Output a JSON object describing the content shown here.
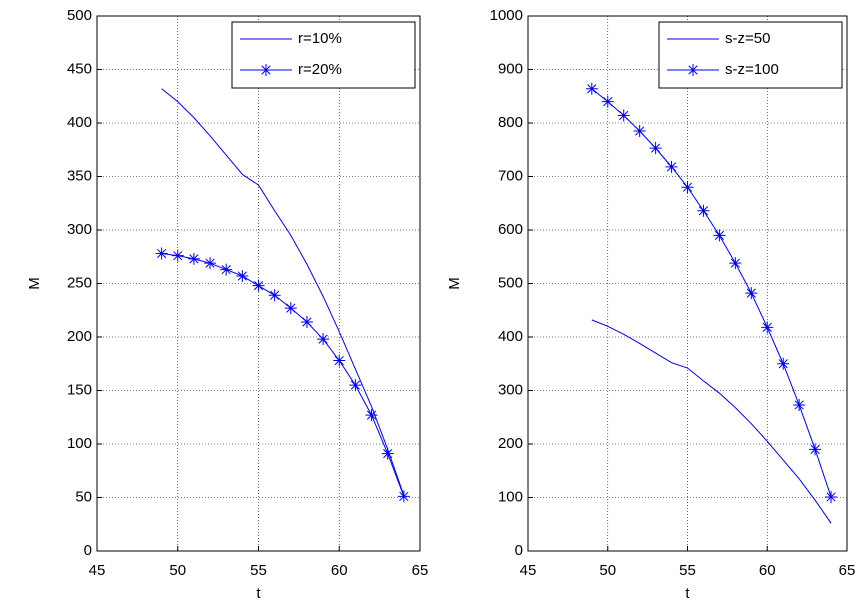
{
  "chart_data": [
    {
      "type": "line",
      "xlabel": "t",
      "ylabel": "M",
      "x": [
        49,
        50,
        51,
        52,
        53,
        54,
        55,
        56,
        57,
        58,
        59,
        60,
        61,
        62,
        63,
        64
      ],
      "series": [
        {
          "name": "r=10%",
          "color": "#0000ff",
          "marker": null,
          "values": [
            432,
            420,
            405,
            388,
            370,
            352,
            342,
            318,
            295,
            268,
            238,
            205,
            170,
            135,
            95,
            52
          ]
        },
        {
          "name": "r=20%",
          "color": "#0000ff",
          "marker": "*",
          "values": [
            278,
            276,
            273,
            269,
            263,
            257,
            248,
            239,
            227,
            214,
            198,
            178,
            155,
            127,
            91,
            51
          ]
        }
      ],
      "xlim": [
        45,
        65
      ],
      "xticks": [
        45,
        50,
        55,
        60,
        65
      ],
      "ylim": [
        0,
        500
      ],
      "yticks": [
        0,
        50,
        100,
        150,
        200,
        250,
        300,
        350,
        400,
        450,
        500
      ],
      "grid": true,
      "legend": "upper right"
    },
    {
      "type": "line",
      "xlabel": "t",
      "ylabel": "M",
      "x": [
        49,
        50,
        51,
        52,
        53,
        54,
        55,
        56,
        57,
        58,
        59,
        60,
        61,
        62,
        63,
        64
      ],
      "series": [
        {
          "name": "s-z=50",
          "color": "#0000ff",
          "marker": null,
          "values": [
            432,
            420,
            405,
            388,
            370,
            352,
            342,
            318,
            295,
            268,
            238,
            205,
            170,
            135,
            95,
            52
          ]
        },
        {
          "name": "s-z=100",
          "color": "#0000ff",
          "marker": "*",
          "values": [
            864,
            840,
            814,
            785,
            753,
            718,
            680,
            636,
            590,
            538,
            482,
            418,
            350,
            273,
            190,
            101
          ]
        }
      ],
      "xlim": [
        45,
        65
      ],
      "xticks": [
        45,
        50,
        55,
        60,
        65
      ],
      "ylim": [
        0,
        1000
      ],
      "yticks": [
        0,
        100,
        200,
        300,
        400,
        500,
        600,
        700,
        800,
        900,
        1000
      ],
      "grid": true,
      "legend": "upper right"
    }
  ]
}
